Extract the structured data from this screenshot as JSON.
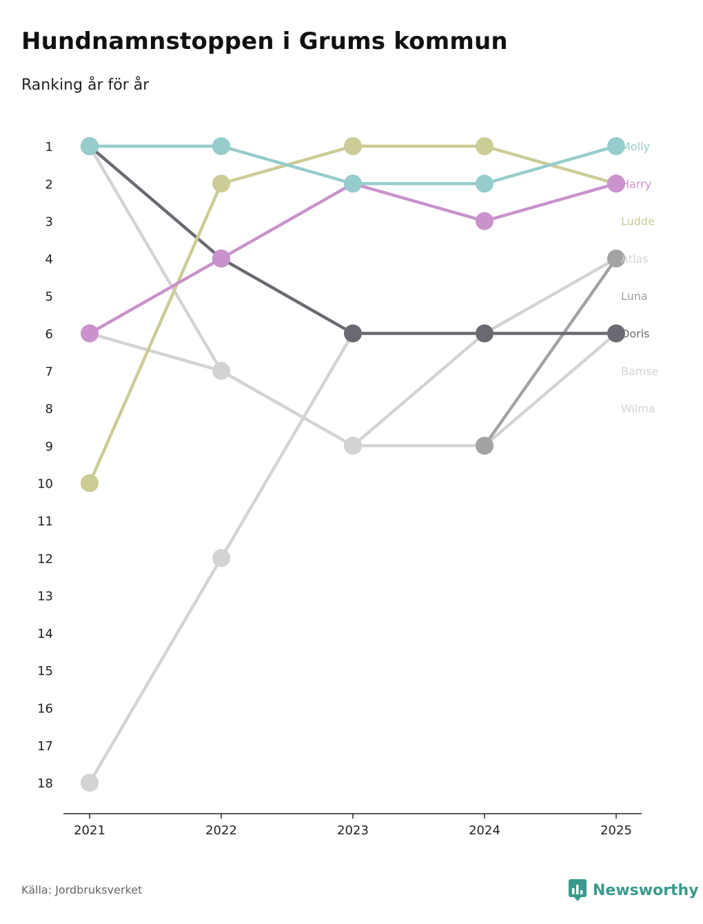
{
  "title": "Hundnamnstoppen i Grums kommun",
  "subtitle": "Ranking år för år",
  "source": "Källa: Jordbruksverket",
  "brand": "Newsworthy",
  "colors": {
    "Molly": "#96cccc",
    "Harry": "#c992cc",
    "Ludde": "#cbcc96",
    "Atlas": "#d3d3d3",
    "Luna": "#a3a3a6",
    "Doris": "#6b6a72",
    "Bamse": "#d3d3d3",
    "Wilma": "#d3d3d3",
    "axis": "#222222",
    "brand": "#3a9a8e"
  },
  "chart_data": {
    "type": "line",
    "title": "Hundnamnstoppen i Grums kommun",
    "subtitle": "Ranking år för år",
    "x": [
      "2021",
      "2022",
      "2023",
      "2024",
      "2025"
    ],
    "y_ticks": [
      1,
      2,
      3,
      4,
      5,
      6,
      7,
      8,
      9,
      10,
      11,
      12,
      13,
      14,
      15,
      16,
      17,
      18
    ],
    "ylim": [
      1,
      18
    ],
    "y_inverted": true,
    "ylabel": "",
    "xlabel": "",
    "series": [
      {
        "name": "Wilma",
        "values": [
          1,
          7,
          9,
          9,
          6
        ]
      },
      {
        "name": "Bamse",
        "values": [
          6,
          7,
          9,
          6,
          6
        ]
      },
      {
        "name": "Atlas",
        "values": [
          18,
          12,
          6,
          6,
          4
        ]
      },
      {
        "name": "Luna",
        "values": [
          null,
          null,
          null,
          9,
          4
        ]
      },
      {
        "name": "Doris",
        "values": [
          1,
          4,
          6,
          6,
          6
        ]
      },
      {
        "name": "Ludde",
        "values": [
          10,
          2,
          1,
          1,
          2
        ]
      },
      {
        "name": "Harry",
        "values": [
          6,
          4,
          2,
          3,
          2
        ]
      },
      {
        "name": "Molly",
        "values": [
          1,
          1,
          2,
          2,
          1
        ]
      }
    ],
    "legend_order": [
      "Molly",
      "Harry",
      "Ludde",
      "Atlas",
      "Luna",
      "Doris",
      "Bamse",
      "Wilma"
    ]
  }
}
